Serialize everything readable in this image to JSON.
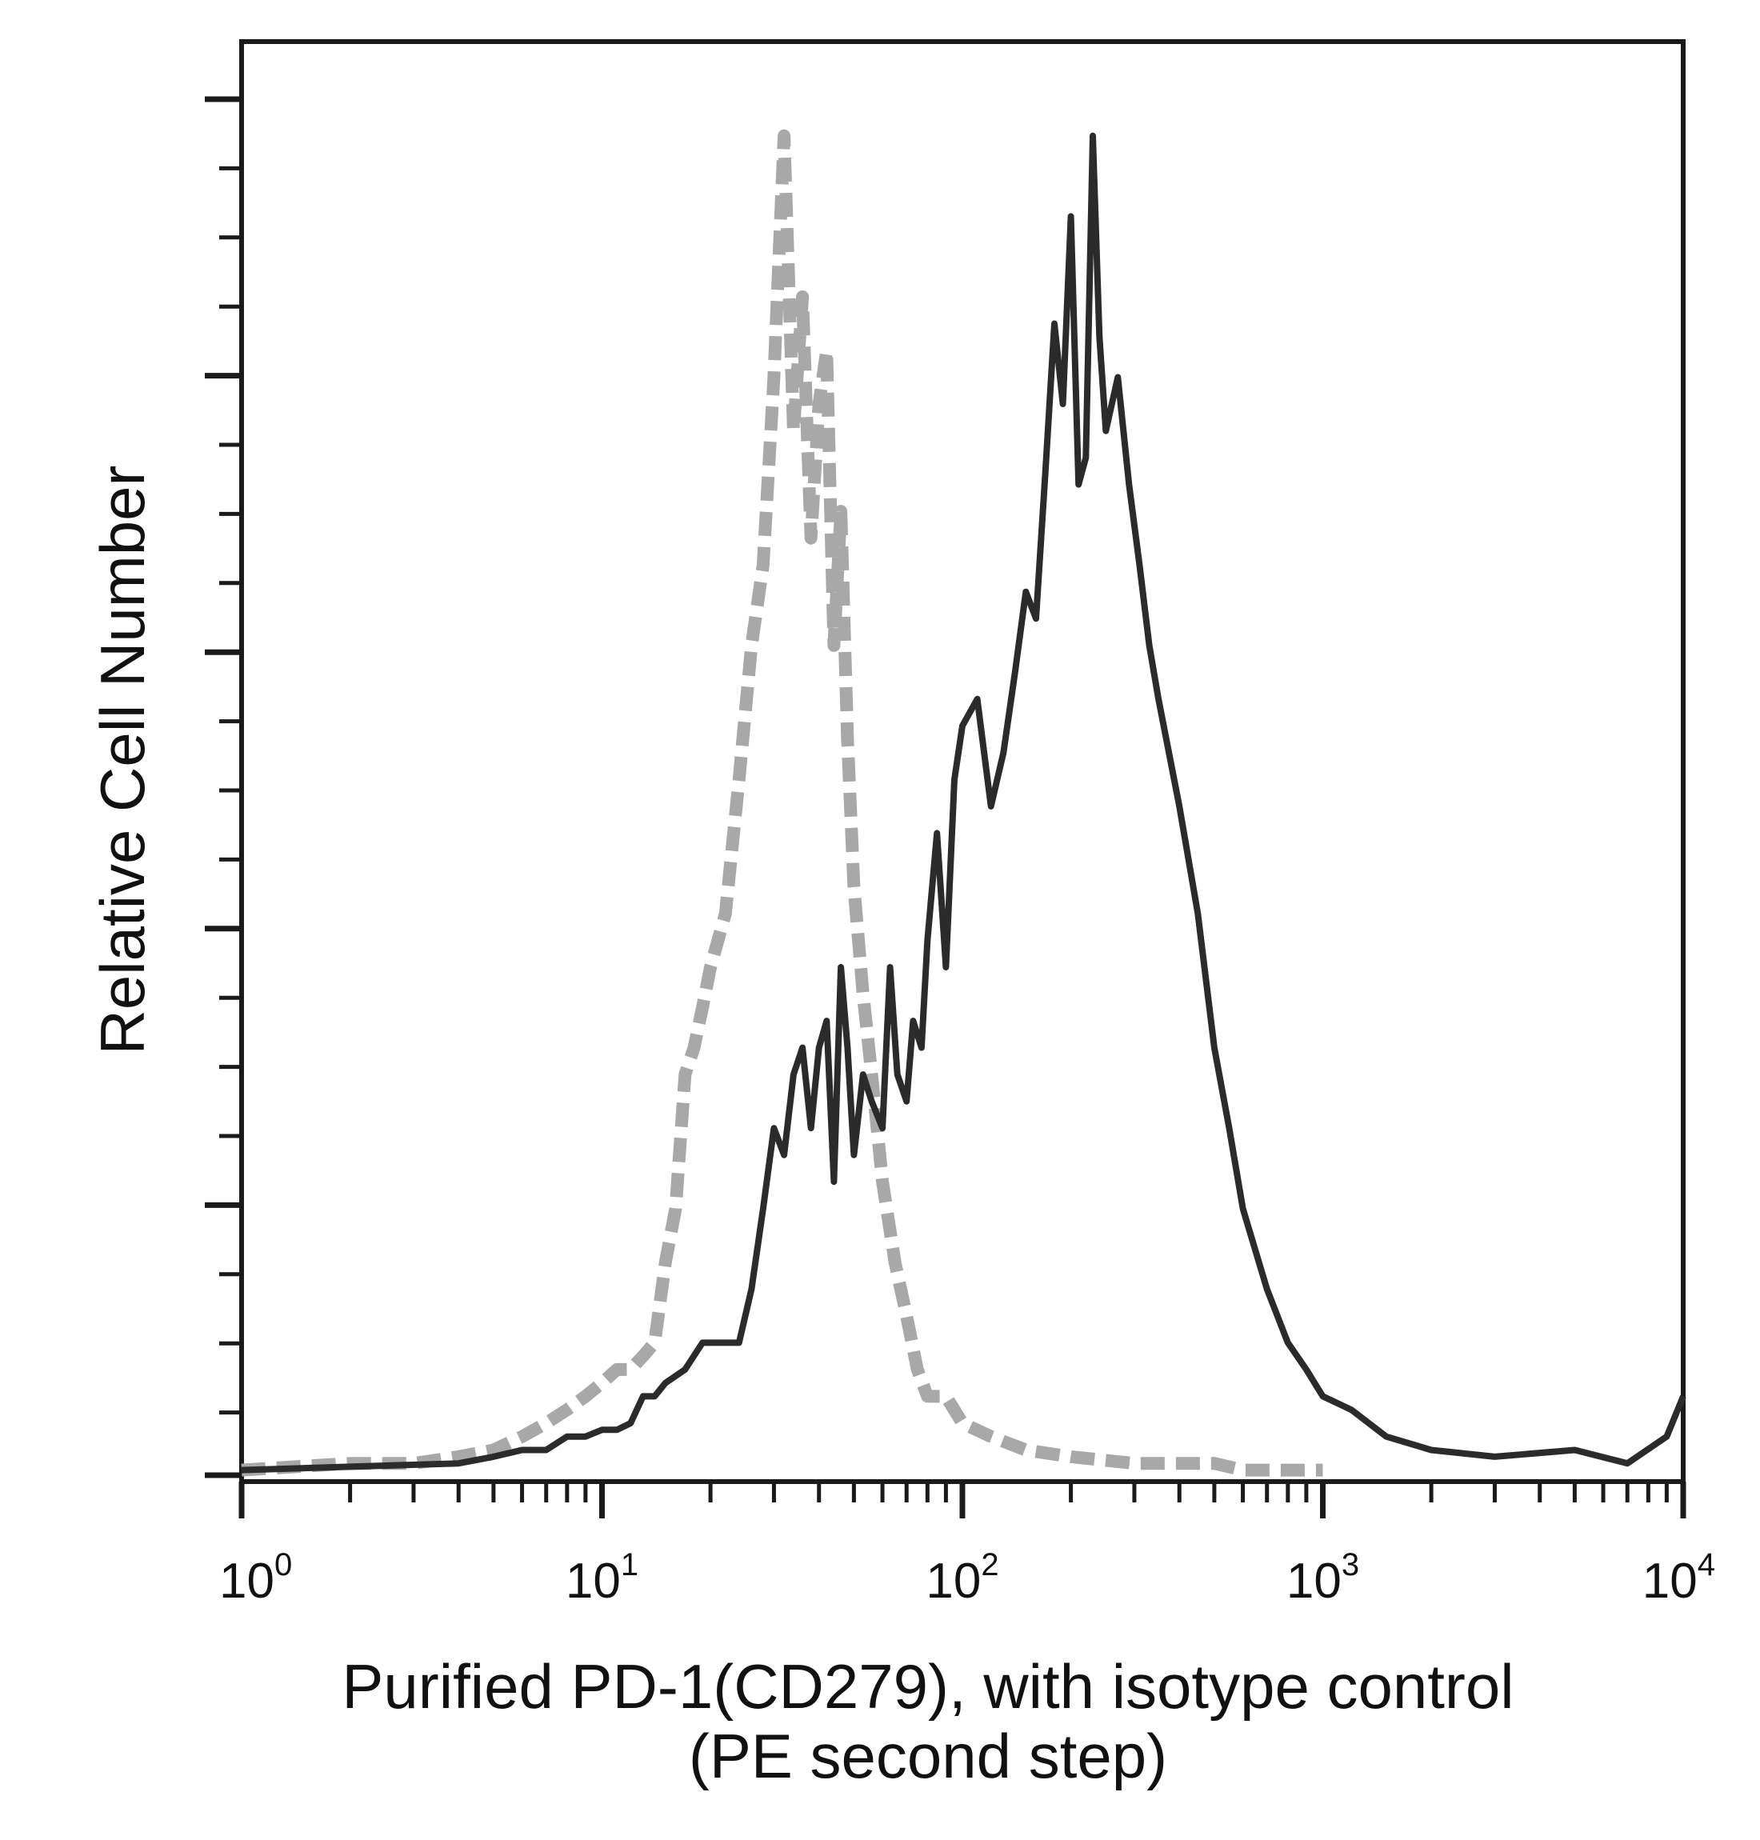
{
  "chart_data": {
    "type": "line",
    "xlabel_lines": [
      "Purified PD-1(CD279), with isotype control",
      "(PE second step)"
    ],
    "ylabel": "Relative Cell Number",
    "x_scale": "log",
    "xlim": [
      1,
      10000
    ],
    "ylim": [
      0,
      105
    ],
    "grid": false,
    "x_ticks": [
      {
        "base": "10",
        "exp": "0",
        "value": 1
      },
      {
        "base": "10",
        "exp": "1",
        "value": 10
      },
      {
        "base": "10",
        "exp": "2",
        "value": 100
      },
      {
        "base": "10",
        "exp": "3",
        "value": 1000
      },
      {
        "base": "10",
        "exp": "4",
        "value": 10000
      }
    ],
    "series": [
      {
        "style": "dashed-gray",
        "color": "#a8a8a8",
        "x": [
          1,
          2,
          3,
          4,
          5,
          6,
          7,
          8,
          9,
          10,
          11,
          12,
          13,
          14,
          15,
          16,
          17,
          18,
          19,
          20,
          22,
          24,
          26,
          28,
          30,
          32,
          34,
          36,
          38,
          40,
          42,
          44,
          46,
          48,
          50,
          53,
          56,
          60,
          65,
          70,
          75,
          80,
          90,
          100,
          120,
          150,
          200,
          300,
          400,
          500,
          600,
          800,
          1000
        ],
        "y": [
          0.5,
          1,
          1,
          1.5,
          2,
          3,
          4,
          5,
          6,
          7,
          8,
          8,
          9,
          10,
          16,
          20,
          30,
          32,
          35,
          38,
          42,
          52,
          62,
          68,
          82,
          100,
          78,
          88,
          70,
          80,
          84,
          62,
          72,
          55,
          44,
          36,
          30,
          22,
          16,
          12,
          8,
          6,
          6,
          4,
          3,
          2,
          1.5,
          1,
          1,
          1,
          0.5,
          0.5,
          0.5
        ]
      },
      {
        "style": "solid-dark",
        "color": "#2b2b2b",
        "x": [
          1,
          4,
          5,
          6,
          7,
          8,
          9,
          10,
          11,
          12,
          13,
          14,
          15,
          17,
          19,
          21,
          24,
          26,
          28,
          30,
          32,
          34,
          36,
          38,
          40,
          42,
          44,
          46,
          48,
          50,
          53,
          56,
          60,
          63,
          66,
          70,
          73,
          77,
          80,
          85,
          90,
          95,
          100,
          110,
          120,
          130,
          140,
          150,
          160,
          170,
          180,
          190,
          200,
          210,
          220,
          230,
          240,
          250,
          270,
          290,
          310,
          330,
          350,
          400,
          450,
          500,
          550,
          600,
          700,
          800,
          900,
          1000,
          1200,
          1500,
          2000,
          3000,
          5000,
          7000,
          9000,
          10000
        ],
        "y": [
          0.5,
          1,
          1.5,
          2,
          2,
          3,
          3,
          3.5,
          3.5,
          4,
          6,
          6,
          7,
          8,
          10,
          10,
          10,
          14,
          20,
          26,
          24,
          30,
          32,
          26,
          32,
          34,
          22,
          38,
          32,
          24,
          30,
          28,
          26,
          38,
          30,
          28,
          34,
          32,
          40,
          48,
          38,
          52,
          56,
          58,
          50,
          54,
          60,
          66,
          64,
          75,
          86,
          80,
          94,
          74,
          76,
          100,
          85,
          78,
          82,
          74,
          68,
          62,
          58,
          50,
          42,
          32,
          26,
          20,
          14,
          10,
          8,
          6,
          5,
          3,
          2,
          1.5,
          2,
          1,
          3,
          6
        ]
      }
    ]
  }
}
